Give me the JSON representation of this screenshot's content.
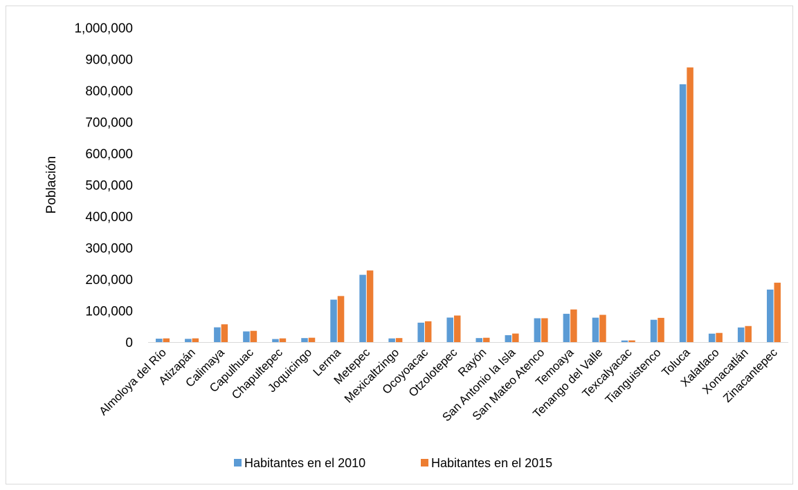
{
  "chart_data": {
    "type": "bar",
    "title": "",
    "xlabel": "",
    "ylabel": "Población",
    "ylim": [
      0,
      1000000
    ],
    "yticks": [
      0,
      100000,
      200000,
      300000,
      400000,
      500000,
      600000,
      700000,
      800000,
      900000,
      1000000
    ],
    "ytick_labels": [
      "0",
      "100,000",
      "200,000",
      "300,000",
      "400,000",
      "500,000",
      "600,000",
      "700,000",
      "800,000",
      "900,000",
      "1,000,000"
    ],
    "grid": false,
    "legend_position": "bottom",
    "categories": [
      "Almoloya del Río",
      "Atizapán",
      "Calimaya",
      "Capulhuac",
      "Chapultepec",
      "Joquicingo",
      "Lerma",
      "Metepec",
      "Mexicaltzingo",
      "Ocoyoacac",
      "Otzolotepec",
      "Rayón",
      "San Antonio la Isla",
      "San Mateo Atenco",
      "Temoaya",
      "Tenango del Valle",
      "Texcalyacac",
      "Tianguistenco",
      "Toluca",
      "Xalatlaco",
      "Xonacatlán",
      "Zinacantepec"
    ],
    "series": [
      {
        "name": "Habitantes en el 2010",
        "color": "#5B9BD5",
        "values": [
          10900,
          10300,
          47000,
          34000,
          9700,
          12800,
          135000,
          214000,
          11700,
          61800,
          78000,
          12800,
          22000,
          75800,
          90000,
          77700,
          5100,
          71000,
          820000,
          26900,
          46500,
          167000
        ]
      },
      {
        "name": "Habitantes en el 2015",
        "color": "#ED7D31",
        "values": [
          11800,
          11900,
          56600,
          35800,
          11800,
          13900,
          146500,
          227800,
          12800,
          66200,
          84500,
          13800,
          27200,
          75900,
          103800,
          86700,
          5400,
          77100,
          873500,
          29200,
          51100,
          188900
        ]
      }
    ]
  }
}
